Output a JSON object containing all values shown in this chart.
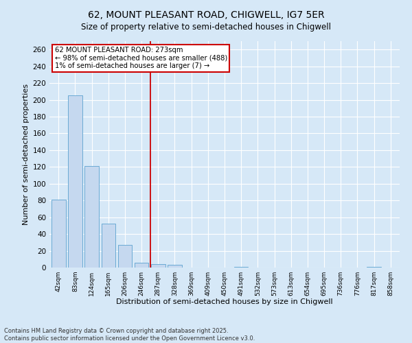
{
  "title1": "62, MOUNT PLEASANT ROAD, CHIGWELL, IG7 5ER",
  "title2": "Size of property relative to semi-detached houses in Chigwell",
  "xlabel": "Distribution of semi-detached houses by size in Chigwell",
  "ylabel": "Number of semi-detached properties",
  "categories": [
    "42sqm",
    "83sqm",
    "124sqm",
    "165sqm",
    "206sqm",
    "246sqm",
    "287sqm",
    "328sqm",
    "369sqm",
    "409sqm",
    "450sqm",
    "491sqm",
    "532sqm",
    "573sqm",
    "613sqm",
    "654sqm",
    "695sqm",
    "736sqm",
    "776sqm",
    "817sqm",
    "858sqm"
  ],
  "values": [
    81,
    205,
    121,
    52,
    27,
    6,
    4,
    3,
    0,
    0,
    0,
    1,
    0,
    0,
    0,
    0,
    0,
    0,
    0,
    1,
    0
  ],
  "bar_color": "#c5d8ef",
  "bar_edge_color": "#6aaad4",
  "property_line_x": 5.55,
  "property_line_label": "62 MOUNT PLEASANT ROAD: 273sqm",
  "annotation_line1": "← 98% of semi-detached houses are smaller (488)",
  "annotation_line2": "1% of semi-detached houses are larger (7) →",
  "annotation_box_color": "#ffffff",
  "annotation_box_edge_color": "#cc0000",
  "property_line_color": "#cc0000",
  "ylim": [
    0,
    270
  ],
  "yticks": [
    0,
    20,
    40,
    60,
    80,
    100,
    120,
    140,
    160,
    180,
    200,
    220,
    240,
    260
  ],
  "footer1": "Contains HM Land Registry data © Crown copyright and database right 2025.",
  "footer2": "Contains public sector information licensed under the Open Government Licence v3.0.",
  "bg_color": "#d6e8f7",
  "plot_bg_color": "#d6e8f7"
}
